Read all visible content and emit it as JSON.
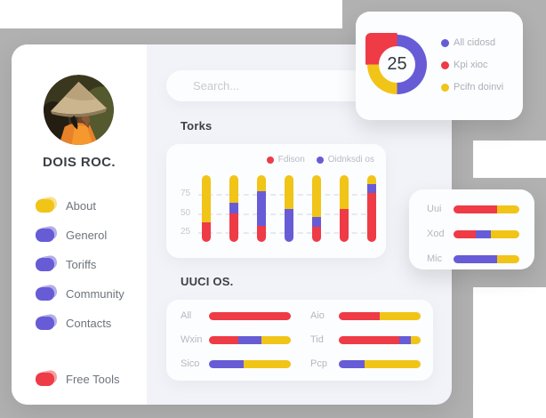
{
  "palette": {
    "red": "#ee3b46",
    "purple": "#675cd6",
    "yellow": "#f1c418",
    "gray_bg": "#b1b1b1",
    "panel_bg": "#f2f3f8",
    "card_bg": "#fcfdff"
  },
  "profile": {
    "name": "DOIS ROC."
  },
  "search": {
    "placeholder": "Search..."
  },
  "sidebar": {
    "items": [
      {
        "label": "About",
        "color": "yellow"
      },
      {
        "label": "Generol",
        "color": "purple"
      },
      {
        "label": "Toriffs",
        "color": "purple"
      },
      {
        "label": "Community",
        "color": "purple"
      },
      {
        "label": "Contacts",
        "color": "purple"
      }
    ],
    "footer_item": {
      "label": "Free Tools",
      "color": "red"
    }
  },
  "donut_card": {
    "center_value": "25",
    "segments": [
      {
        "label": "All cidosd",
        "color": "purple",
        "value": 50,
        "arc": [
          0,
          50
        ]
      },
      {
        "label": "Kpi xioc",
        "color": "red",
        "value": 25,
        "arc": [
          75,
          100
        ]
      },
      {
        "label": "Pcifn doinvi",
        "color": "yellow",
        "value": 25,
        "arc": [
          50,
          75
        ]
      }
    ]
  },
  "torks_chart": {
    "title": "Torks",
    "type": "stacked-bar",
    "legend": [
      {
        "label": "Fdison",
        "color": "red"
      },
      {
        "label": "Oidnksdi os",
        "color": "purple"
      }
    ],
    "y_ticks": [
      "75",
      "50",
      "25"
    ],
    "bars": [
      {
        "red": 30,
        "purple": 0,
        "yellow": 70
      },
      {
        "red": 43,
        "purple": 16,
        "yellow": 41
      },
      {
        "red": 24,
        "purple": 52,
        "yellow": 24
      },
      {
        "red": 0,
        "purple": 49,
        "yellow": 51
      },
      {
        "red": 23,
        "purple": 15,
        "yellow": 62
      },
      {
        "red": 49,
        "purple": 0,
        "yellow": 51
      },
      {
        "red": 73,
        "purple": 14,
        "yellow": 13
      }
    ]
  },
  "uuci_chart": {
    "title": "UUCI OS.",
    "type": "horizontal-stacked-bar",
    "columns": [
      {
        "rows": [
          {
            "label": "All",
            "segments": [
              {
                "color": "red",
                "value": 100
              }
            ]
          },
          {
            "label": "Wxin",
            "segments": [
              {
                "color": "red",
                "value": 36
              },
              {
                "color": "purple",
                "value": 28
              },
              {
                "color": "yellow",
                "value": 36
              }
            ]
          },
          {
            "label": "Sico",
            "segments": [
              {
                "color": "purple",
                "value": 42
              },
              {
                "color": "yellow",
                "value": 58
              }
            ]
          }
        ]
      },
      {
        "rows": [
          {
            "label": "Aio",
            "segments": [
              {
                "color": "red",
                "value": 50
              },
              {
                "color": "yellow",
                "value": 50
              }
            ]
          },
          {
            "label": "Tid",
            "segments": [
              {
                "color": "red",
                "value": 74
              },
              {
                "color": "purple",
                "value": 14
              },
              {
                "color": "yellow",
                "value": 12
              }
            ]
          },
          {
            "label": "Pcp",
            "segments": [
              {
                "color": "purple",
                "value": 31
              },
              {
                "color": "yellow",
                "value": 69
              }
            ]
          }
        ]
      }
    ]
  },
  "mini_chart": {
    "type": "horizontal-stacked-bar",
    "rows": [
      {
        "label": "Uui",
        "segments": [
          {
            "color": "red",
            "value": 66
          },
          {
            "color": "yellow",
            "value": 34
          }
        ]
      },
      {
        "label": "Xod",
        "segments": [
          {
            "color": "red",
            "value": 34
          },
          {
            "color": "purple",
            "value": 23
          },
          {
            "color": "yellow",
            "value": 43
          }
        ]
      },
      {
        "label": "Mic",
        "segments": [
          {
            "color": "purple",
            "value": 66
          },
          {
            "color": "yellow",
            "value": 34
          }
        ]
      }
    ]
  }
}
